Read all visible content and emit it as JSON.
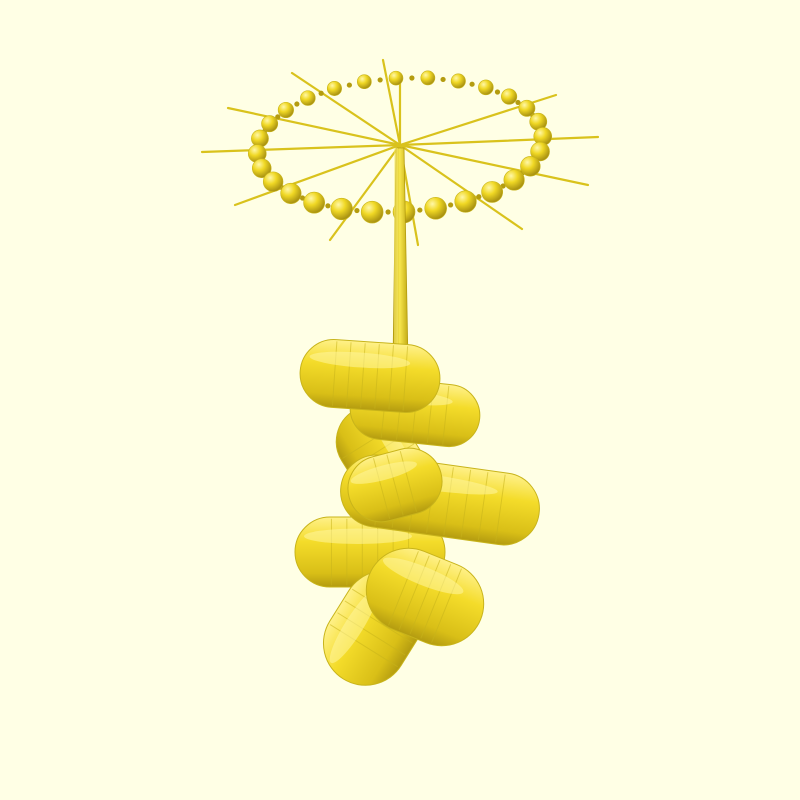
{
  "viewport": {
    "background": "#ffffe5",
    "model": "3d-render",
    "colors": {
      "body": "#f2dd28",
      "light": "#fbee6e",
      "shadow": "#b49c0f",
      "edge": "#c8b41b",
      "rod": "#d9c21c"
    },
    "parts": [
      "spoked-ring",
      "central-stem",
      "segmented-pods"
    ]
  }
}
